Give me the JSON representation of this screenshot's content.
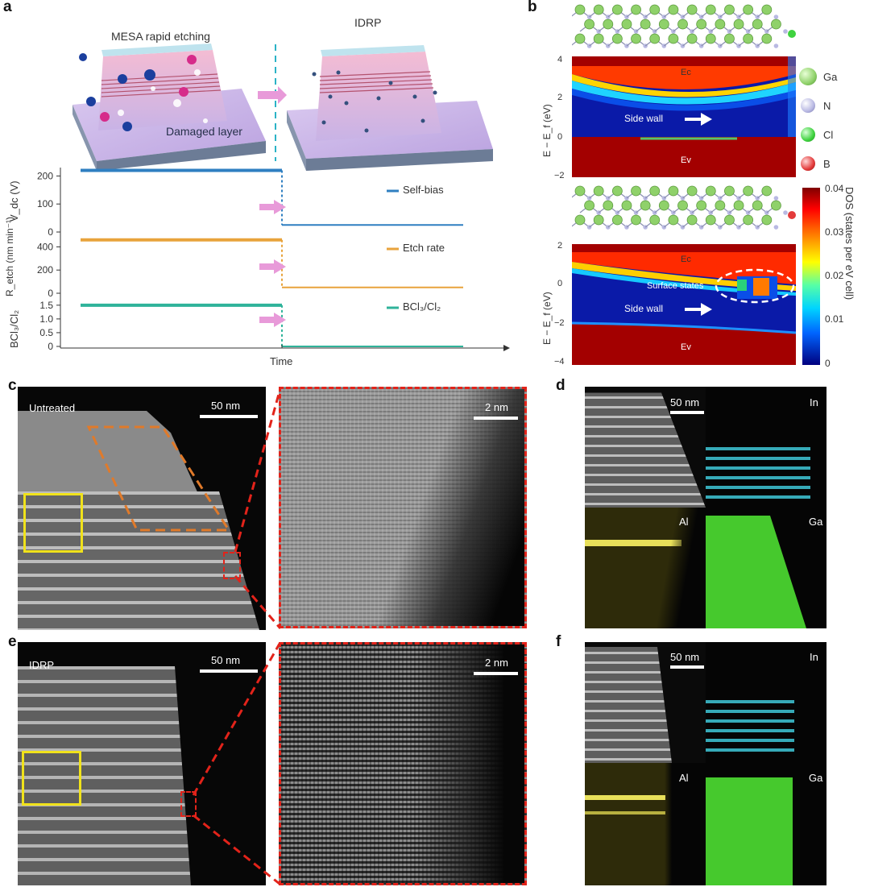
{
  "panels": {
    "a": "a",
    "b": "b",
    "c": "c",
    "d": "d",
    "e": "e",
    "f": "f"
  },
  "schematic": {
    "left_title": "MESA rapid etching",
    "right_title": "IDRP",
    "damaged_label": "Damaged layer"
  },
  "chart_data": [
    {
      "type": "line",
      "ylabel": "V_dc (V)",
      "ylim": [
        0,
        230
      ],
      "yticks": [
        "200",
        "100",
        "0"
      ],
      "series": [
        {
          "name": "Self-bias",
          "color": "#2f7fc1",
          "before": 220,
          "after": 25
        }
      ]
    },
    {
      "type": "line",
      "ylabel": "R_etch (nm min⁻¹)",
      "ylim": [
        0,
        500
      ],
      "yticks": [
        "400",
        "200",
        "0"
      ],
      "series": [
        {
          "name": "Etch rate",
          "color": "#e8a33c",
          "before": 460,
          "after": 50
        }
      ]
    },
    {
      "type": "line",
      "ylabel": "BCl₃/Cl₂",
      "ylim": [
        0,
        1.7
      ],
      "yticks": [
        "1.5",
        "1.0",
        "0.5",
        "0"
      ],
      "xlabel": "Time",
      "series": [
        {
          "name": "BCl₃/Cl₂",
          "color": "#2fb39a",
          "before": 1.5,
          "after": 0
        }
      ]
    }
  ],
  "dos": {
    "ylabel": "E − E_f (eV)",
    "top_ticks": [
      "4",
      "2",
      "0",
      "−2"
    ],
    "bottom_ticks": [
      "2",
      "0",
      "−2",
      "−4"
    ],
    "ec_label": "Ec",
    "ev_label": "Ev",
    "sidewall_label": "Side wall",
    "surface_label": "Surface states",
    "colorbar_title": "DOS (states per eV cell)",
    "colorbar_ticks": [
      "0.04",
      "0.03",
      "0.02",
      "0.01",
      "0"
    ],
    "atom_legend": [
      {
        "name": "Ga",
        "color": "#8fd16a"
      },
      {
        "name": "N",
        "color": "#b9b9e3"
      },
      {
        "name": "Cl",
        "color": "#3fd23f"
      },
      {
        "name": "B",
        "color": "#e33b3b"
      }
    ]
  },
  "micro": {
    "c_label": "Untreated",
    "e_label": "IDRP",
    "scale_50": "50 nm",
    "scale_2": "2 nm",
    "elements": {
      "in": "In",
      "al": "Al",
      "ga": "Ga"
    },
    "colors": {
      "in": "#3fc7d8",
      "al": "#e8e05a",
      "ga": "#5be03a"
    }
  }
}
